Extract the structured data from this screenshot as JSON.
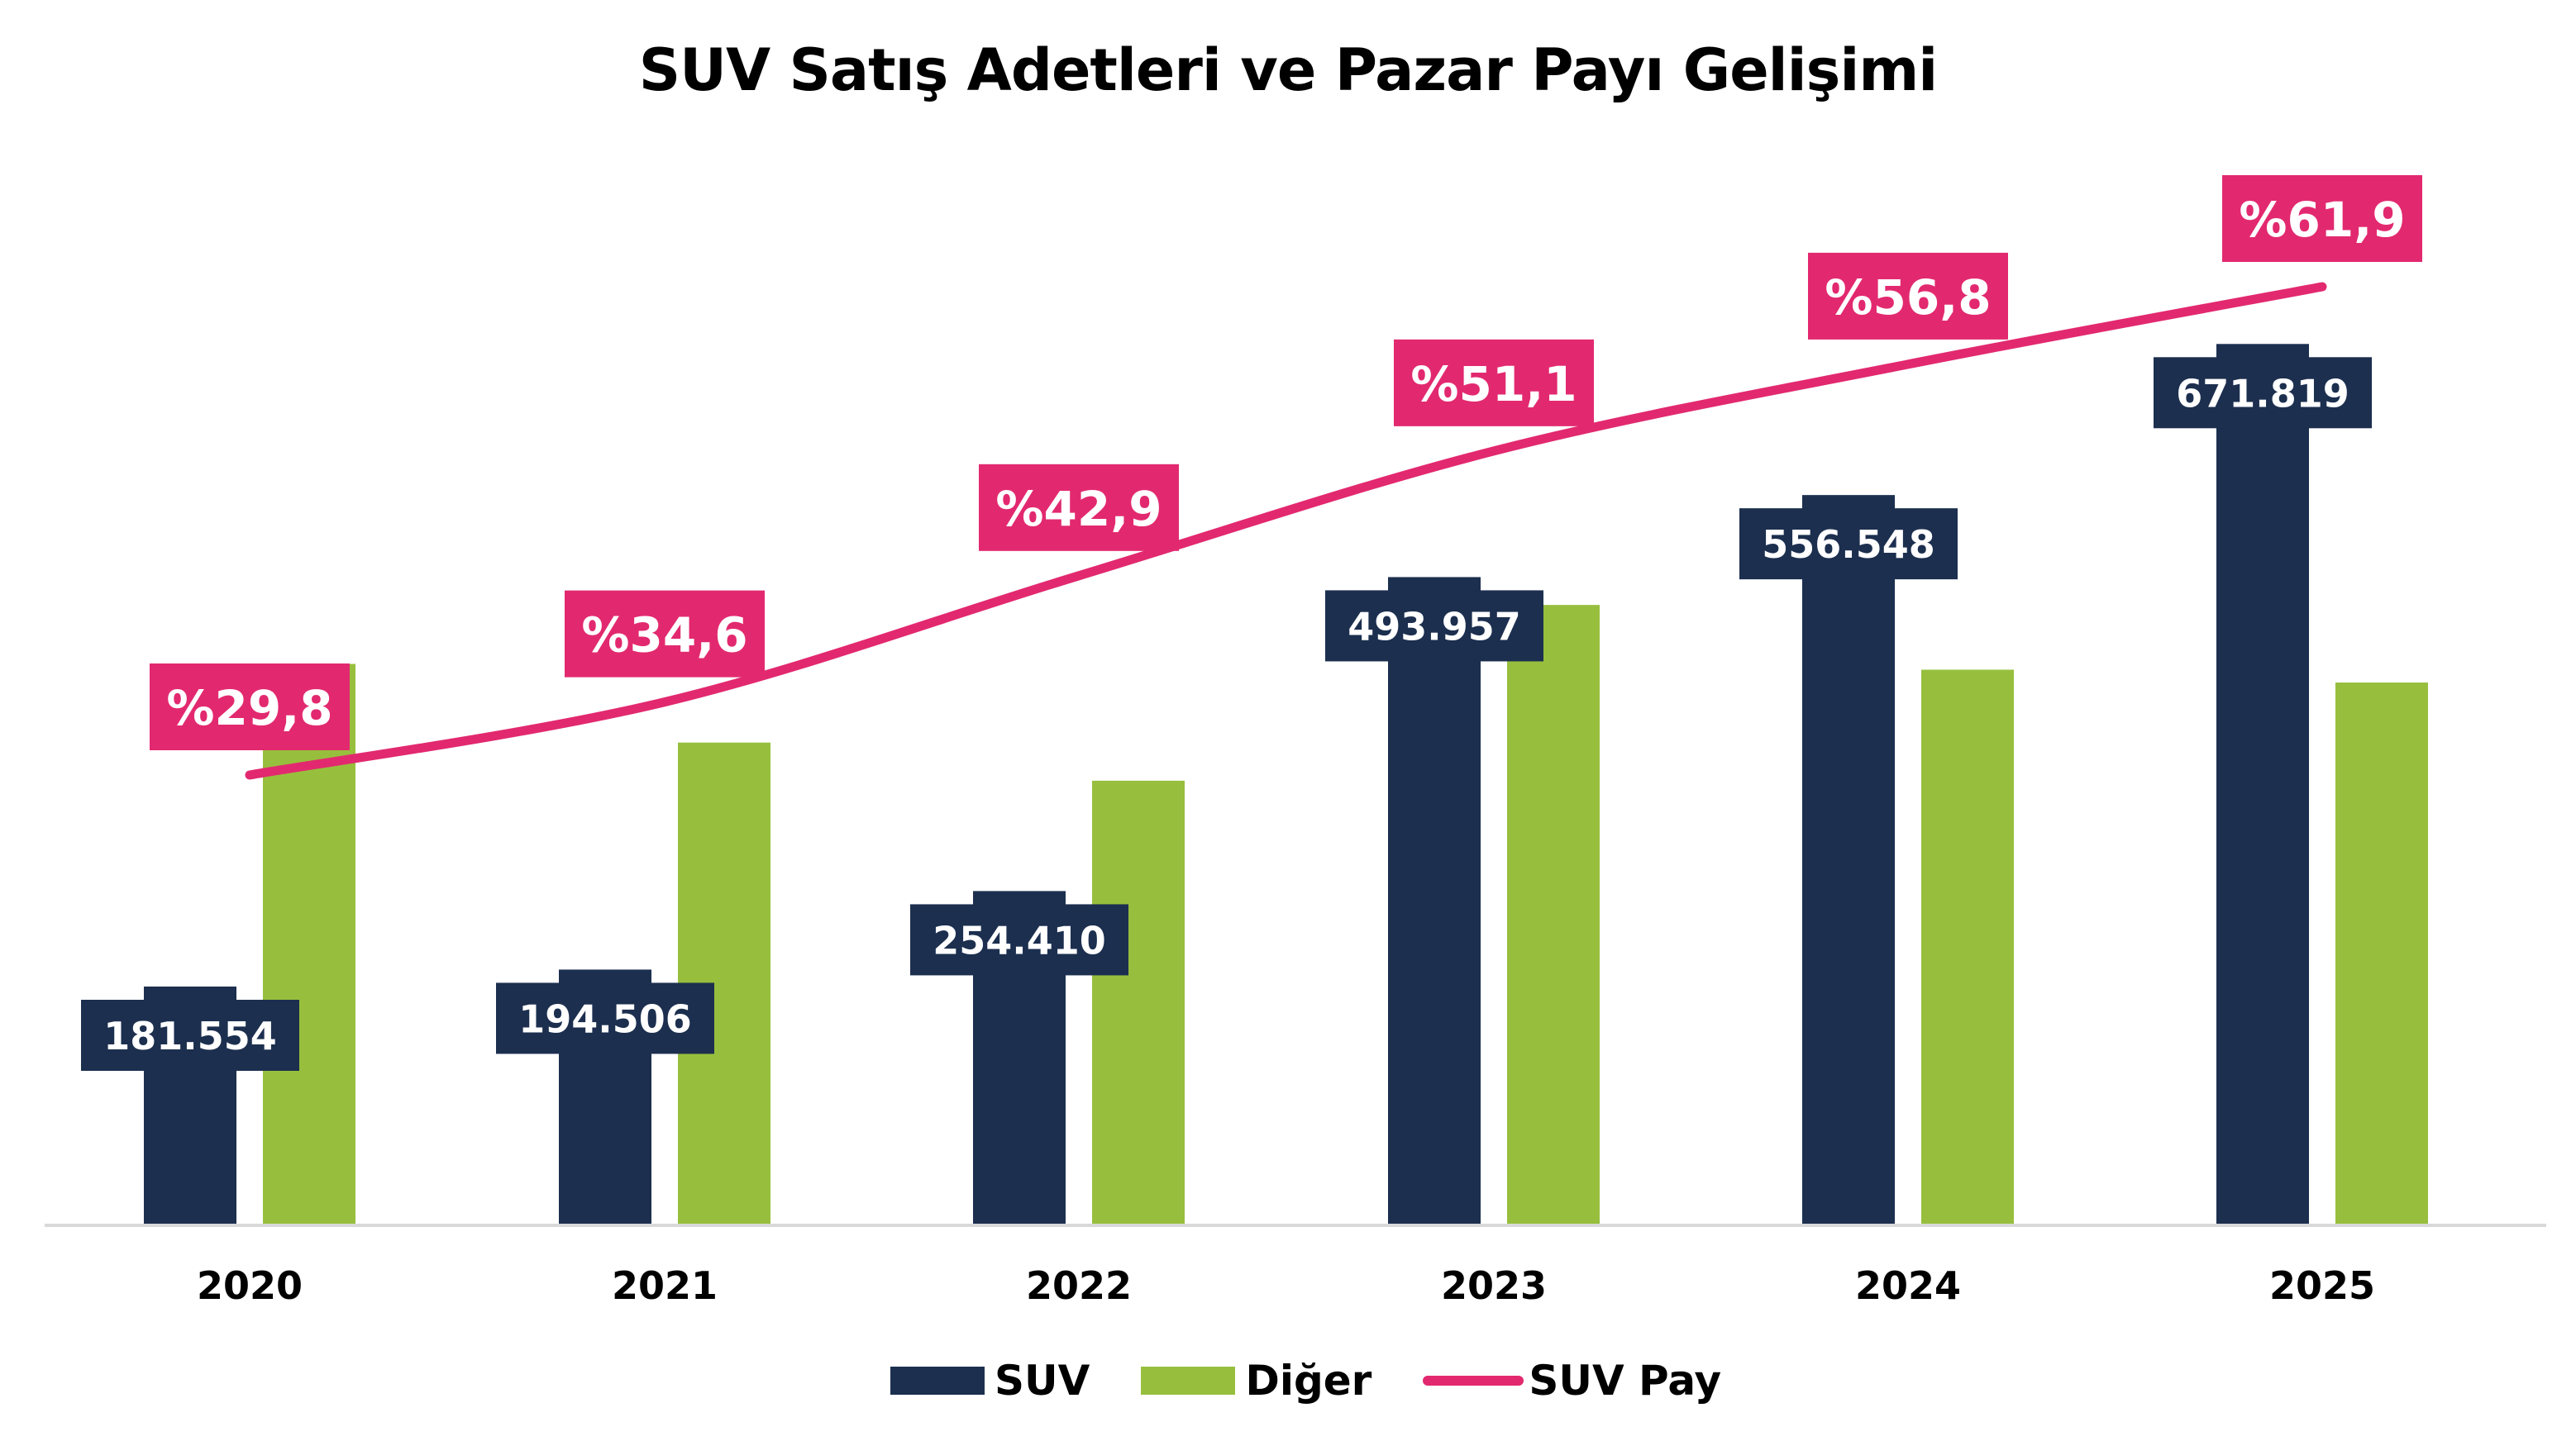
{
  "title": "SUV Satış Adetleri ve Pazar Payı Gelişimi",
  "colors": {
    "suv": "#1C2F4F",
    "other": "#97BF3D",
    "share": "#E2296F",
    "axis": "#D9D9D9"
  },
  "legend": [
    {
      "label": "SUV",
      "type": "bar",
      "color": "#1C2F4F"
    },
    {
      "label": "Diğer",
      "type": "bar",
      "color": "#97BF3D"
    },
    {
      "label": "SUV Pay",
      "type": "line",
      "color": "#E2296F"
    }
  ],
  "chart_data": {
    "type": "bar+line",
    "title": "SUV Satış Adetleri ve Pazar Payı Gelişimi",
    "xlabel": "",
    "ylabel": "",
    "categories": [
      "2020",
      "2021",
      "2022",
      "2023",
      "2024",
      "2025"
    ],
    "series": [
      {
        "name": "SUV",
        "type": "bar",
        "values": [
          181554,
          194506,
          254410,
          493957,
          556548,
          671819
        ],
        "labels": [
          "181.554",
          "194.506",
          "254.410",
          "493.957",
          "556.548",
          "671.819"
        ]
      },
      {
        "name": "Diğer",
        "type": "bar",
        "values": [
          427700,
          367700,
          338600,
          472700,
          423300,
          413500
        ],
        "labels_shown": false
      },
      {
        "name": "SUV Pay",
        "type": "line",
        "axis": "secondary",
        "values": [
          29.8,
          34.6,
          42.9,
          51.1,
          56.8,
          61.9
        ],
        "labels": [
          "%29,8",
          "%34,6",
          "%42,9",
          "%51,1",
          "%56,8",
          "%61,9"
        ]
      }
    ],
    "grid": false,
    "y_axis_visible": false,
    "legend_position": "bottom"
  }
}
